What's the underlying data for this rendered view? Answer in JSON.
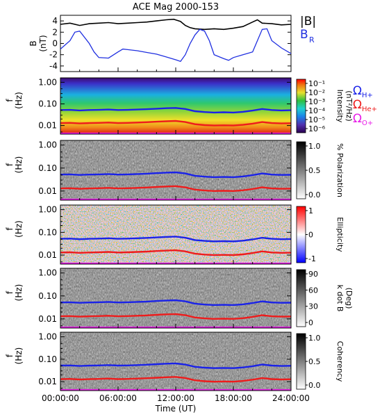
{
  "title": "ACE Mag 2000-153",
  "colors": {
    "B_total": "#000000",
    "B_R": "#1f2fe0",
    "gyro_H": "#1a22e8",
    "gyro_He": "#ee1c1c",
    "gyro_O": "#e81ce8"
  },
  "chart_data": [
    {
      "type": "line",
      "panel": "B",
      "ylabel_lines": [
        "B",
        "(nT)"
      ],
      "ylim": [
        -5,
        5
      ],
      "yticks": [
        "4",
        "2",
        "0",
        "-2",
        "-4"
      ],
      "xlim_hours": [
        0,
        24
      ],
      "series": [
        {
          "name": "|B|",
          "color": "#000000",
          "points": [
            [
              0,
              3.4
            ],
            [
              1,
              3.6
            ],
            [
              2,
              3.2
            ],
            [
              3,
              3.5
            ],
            [
              4,
              3.6
            ],
            [
              5,
              3.7
            ],
            [
              6,
              3.5
            ],
            [
              7,
              3.6
            ],
            [
              8,
              3.7
            ],
            [
              9,
              3.8
            ],
            [
              10,
              4.0
            ],
            [
              11,
              4.2
            ],
            [
              11.8,
              4.3
            ],
            [
              12.5,
              3.9
            ],
            [
              13,
              3.2
            ],
            [
              13.5,
              2.8
            ],
            [
              14,
              2.6
            ],
            [
              15,
              2.5
            ],
            [
              16,
              2.6
            ],
            [
              17,
              2.5
            ],
            [
              18,
              2.7
            ],
            [
              19,
              3.0
            ],
            [
              20,
              3.8
            ],
            [
              20.5,
              4.2
            ],
            [
              21,
              3.6
            ],
            [
              22,
              3.5
            ],
            [
              23,
              3.3
            ],
            [
              24,
              3.4
            ]
          ]
        },
        {
          "name": "B_R",
          "color": "#1f2fe0",
          "points": [
            [
              0,
              -1.0
            ],
            [
              1,
              0.5
            ],
            [
              1.5,
              2.0
            ],
            [
              2,
              2.2
            ],
            [
              3,
              0.0
            ],
            [
              3.5,
              -1.5
            ],
            [
              4,
              -2.5
            ],
            [
              5,
              -2.6
            ],
            [
              6,
              -1.5
            ],
            [
              6.5,
              -1.0
            ],
            [
              7,
              -1.1
            ],
            [
              8,
              -1.3
            ],
            [
              9,
              -1.6
            ],
            [
              10,
              -1.9
            ],
            [
              11,
              -2.4
            ],
            [
              12,
              -2.9
            ],
            [
              12.5,
              -3.2
            ],
            [
              13,
              -2.0
            ],
            [
              13.5,
              0.0
            ],
            [
              14,
              1.5
            ],
            [
              14.5,
              2.5
            ],
            [
              15,
              2.2
            ],
            [
              15.5,
              0.5
            ],
            [
              16,
              -2.0
            ],
            [
              17,
              -2.7
            ],
            [
              17.5,
              -3.0
            ],
            [
              18,
              -2.5
            ],
            [
              19,
              -2.0
            ],
            [
              20,
              -1.5
            ],
            [
              20.5,
              0.5
            ],
            [
              21,
              2.5
            ],
            [
              21.5,
              2.6
            ],
            [
              22,
              0.5
            ],
            [
              23,
              -0.8
            ],
            [
              24,
              -1.8
            ]
          ]
        }
      ],
      "legend": [
        "|B|",
        "B_R"
      ]
    },
    {
      "type": "heatmap",
      "panel": "Intensity",
      "ylabel_lines": [
        "f",
        "(Hz)"
      ],
      "yscale": "log",
      "ylim": [
        0.004,
        1.6
      ],
      "yticks": [
        "1.00",
        "0.10",
        "0.01"
      ],
      "colorbar_label_lines": [
        "Intensity",
        "(nT²/Hz)"
      ],
      "colorbar_ticks": [
        "10⁻¹",
        "10⁻²",
        "10⁻³",
        "10⁻⁴",
        "10⁻⁵",
        "10⁻⁶"
      ],
      "colormap": "rainbow",
      "legend": [
        {
          "symbol": "Ω",
          "sub": "H+",
          "color": "#1a22e8"
        },
        {
          "symbol": "Ω",
          "sub": "He+",
          "color": "#ee1c1c"
        },
        {
          "symbol": "Ω",
          "sub": "O+",
          "color": "#e81ce8"
        }
      ]
    },
    {
      "type": "heatmap",
      "panel": "Polarization",
      "ylabel_lines": [
        "f",
        "(Hz)"
      ],
      "yscale": "log",
      "yticks": [
        "1.00",
        "0.10",
        "0.01"
      ],
      "colorbar_label_lines": [
        "% Polarization"
      ],
      "colorbar_ticks": [
        "1.0",
        "0.5",
        "0.0"
      ],
      "colormap": "gray"
    },
    {
      "type": "heatmap",
      "panel": "Ellipticity",
      "ylabel_lines": [
        "f",
        "(Hz)"
      ],
      "yscale": "log",
      "yticks": [
        "1.00",
        "0.10",
        "0.01"
      ],
      "colorbar_label_lines": [
        "Ellipticity"
      ],
      "colorbar_ticks": [
        "1",
        "0",
        "-1"
      ],
      "colormap": "bwr"
    },
    {
      "type": "heatmap",
      "panel": "k dot B",
      "ylabel_lines": [
        "f",
        "(Hz)"
      ],
      "yscale": "log",
      "yticks": [
        "1.00",
        "0.10",
        "0.01"
      ],
      "colorbar_label_lines": [
        "k dot B",
        "(Deg)"
      ],
      "colorbar_ticks": [
        "90",
        "60",
        "30",
        "0"
      ],
      "colormap": "gray"
    },
    {
      "type": "heatmap",
      "panel": "Coherency",
      "ylabel_lines": [
        "f",
        "(Hz)"
      ],
      "yscale": "log",
      "yticks": [
        "1.00",
        "0.10",
        "0.01"
      ],
      "colorbar_label_lines": [
        "Coherency"
      ],
      "colorbar_ticks": [
        "1.0",
        "0.5",
        "0.0"
      ],
      "colormap": "gray"
    }
  ],
  "gyrofrequency_lines": {
    "x_hours": [
      0,
      1,
      2,
      3,
      4,
      5,
      6,
      7,
      8,
      9,
      10,
      11,
      12,
      13,
      14,
      15,
      16,
      17,
      18,
      19,
      20,
      21,
      22,
      23,
      24
    ],
    "H_hz": [
      0.052,
      0.053,
      0.05,
      0.052,
      0.053,
      0.055,
      0.052,
      0.053,
      0.055,
      0.057,
      0.06,
      0.063,
      0.065,
      0.058,
      0.046,
      0.042,
      0.04,
      0.041,
      0.04,
      0.043,
      0.049,
      0.058,
      0.052,
      0.05,
      0.051
    ]
  },
  "xaxis": {
    "ticks": [
      "00:00:00",
      "06:00:00",
      "12:00:00",
      "18:00:00",
      "24:00:00"
    ],
    "label": "Time (UT)"
  }
}
